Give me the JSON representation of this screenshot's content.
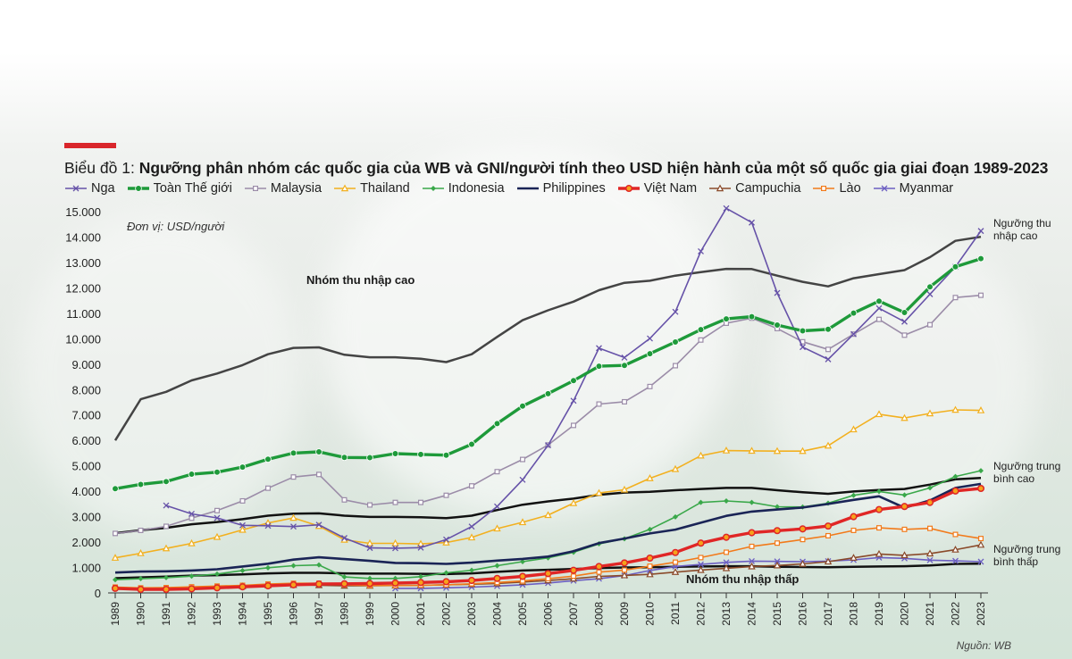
{
  "chart_data": {
    "type": "line",
    "title_prefix": "Biểu đồ 1:",
    "title": "Ngưỡng phân nhóm các quốc gia của WB và GNI/người tính theo USD hiện hành của một số quốc gia giai đoạn 1989-2023",
    "unit": "Đơn vị: USD/người",
    "source": "Nguồn: WB",
    "ylim": [
      0,
      15000
    ],
    "yticks": [
      "0",
      "1.000",
      "2.000",
      "3.000",
      "4.000",
      "5.000",
      "6.000",
      "7.000",
      "8.000",
      "9.000",
      "10.000",
      "11.000",
      "12.000",
      "13.000",
      "14.000",
      "15.000"
    ],
    "x": [
      "1989",
      "1990",
      "1991",
      "1992",
      "1993",
      "1994",
      "1995",
      "1996",
      "1997",
      "1998",
      "1999",
      "2000",
      "2001",
      "2002",
      "2003",
      "2004",
      "2005",
      "2006",
      "2007",
      "2008",
      "2009",
      "2010",
      "2011",
      "2012",
      "2013",
      "2014",
      "2015",
      "2016",
      "2017",
      "2018",
      "2019",
      "2020",
      "2021",
      "2022",
      "2023"
    ],
    "band_labels": {
      "high": "Nhóm thu nhập cao",
      "low": "Nhóm thu nhập thấp"
    },
    "threshold_labels": {
      "high": "Ngưỡng thu nhập cao",
      "upper_middle": "Ngưỡng trung bình cao",
      "lower_middle": "Ngưỡng trung bình thấp"
    },
    "thresholds": [
      {
        "name": "Ngưỡng thu nhập cao",
        "color": "#444444",
        "values": [
          6000,
          7620,
          7910,
          8360,
          8630,
          8960,
          9390,
          9640,
          9660,
          9370,
          9270,
          9270,
          9210,
          9080,
          9390,
          10070,
          10730,
          11120,
          11460,
          11910,
          12200,
          12280,
          12480,
          12620,
          12750,
          12740,
          12480,
          12240,
          12060,
          12380,
          12540,
          12700,
          13210,
          13850,
          14010
        ]
      },
      {
        "name": "Ngưỡng trung bình cao",
        "color": "#111111",
        "values": [
          2350,
          2470,
          2560,
          2700,
          2790,
          2900,
          3040,
          3120,
          3130,
          3040,
          2990,
          2990,
          2980,
          2940,
          3040,
          3260,
          3470,
          3600,
          3710,
          3860,
          3950,
          3980,
          4040,
          4090,
          4130,
          4130,
          4040,
          3960,
          3900,
          3990,
          4050,
          4090,
          4260,
          4470,
          4520
        ]
      },
      {
        "name": "Ngưỡng trung bình thấp",
        "color": "#111111",
        "values": [
          580,
          610,
          640,
          680,
          700,
          730,
          770,
          790,
          790,
          770,
          760,
          760,
          750,
          740,
          770,
          830,
          880,
          910,
          940,
          980,
          1000,
          1010,
          1030,
          1040,
          1050,
          1050,
          1030,
          1020,
          1010,
          1030,
          1040,
          1050,
          1080,
          1140,
          1150
        ]
      }
    ],
    "series": [
      {
        "name": "Nga",
        "color": "#6652a8",
        "marker": "x",
        "values": [
          null,
          null,
          3440,
          3110,
          2950,
          2660,
          2640,
          2610,
          2680,
          2160,
          1770,
          1760,
          1780,
          2100,
          2610,
          3400,
          4450,
          5810,
          7560,
          9630,
          9260,
          10010,
          11060,
          13440,
          15130,
          14570,
          11800,
          9670,
          9190,
          10180,
          11200,
          10670,
          11750,
          12830,
          14240
        ]
      },
      {
        "name": "Toàn Thế giới",
        "color": "#1e9a3a",
        "marker": "dot",
        "values": [
          4100,
          4270,
          4380,
          4670,
          4750,
          4950,
          5260,
          5500,
          5550,
          5330,
          5320,
          5480,
          5450,
          5420,
          5850,
          6660,
          7350,
          7840,
          8350,
          8920,
          8950,
          9410,
          9870,
          10360,
          10780,
          10870,
          10540,
          10310,
          10370,
          11010,
          11480,
          11030,
          12040,
          12830,
          13150
        ]
      },
      {
        "name": "Malaysia",
        "color": "#9b8ca8",
        "marker": "square",
        "values": [
          2340,
          2460,
          2620,
          2940,
          3240,
          3620,
          4120,
          4560,
          4660,
          3660,
          3460,
          3560,
          3560,
          3840,
          4210,
          4770,
          5250,
          5820,
          6590,
          7430,
          7520,
          8120,
          8940,
          9950,
          10610,
          10810,
          10400,
          9880,
          9580,
          10180,
          10760,
          10140,
          10550,
          11620,
          11710
        ]
      },
      {
        "name": "Thailand",
        "color": "#f2b01f",
        "marker": "triangle",
        "values": [
          1380,
          1560,
          1750,
          1950,
          2200,
          2480,
          2750,
          2950,
          2630,
          2090,
          1950,
          1950,
          1930,
          1980,
          2180,
          2530,
          2780,
          3060,
          3530,
          3930,
          4060,
          4510,
          4870,
          5400,
          5600,
          5590,
          5580,
          5580,
          5790,
          6430,
          7030,
          6880,
          7060,
          7200,
          7180
        ]
      },
      {
        "name": "Indonesia",
        "color": "#3aa84a",
        "marker": "diamond",
        "values": [
          520,
          560,
          600,
          660,
          740,
          880,
          990,
          1070,
          1100,
          630,
          570,
          570,
          640,
          790,
          890,
          1070,
          1230,
          1380,
          1600,
          1930,
          2130,
          2500,
          2990,
          3560,
          3620,
          3560,
          3390,
          3380,
          3530,
          3840,
          3990,
          3850,
          4130,
          4580,
          4810
        ]
      },
      {
        "name": "Philippines",
        "color": "#1a2456",
        "marker": "none",
        "values": [
          800,
          840,
          850,
          880,
          930,
          1040,
          1150,
          1310,
          1400,
          1330,
          1260,
          1180,
          1170,
          1140,
          1190,
          1270,
          1340,
          1430,
          1640,
          1960,
          2140,
          2340,
          2490,
          2760,
          3030,
          3200,
          3280,
          3360,
          3500,
          3660,
          3800,
          3350,
          3640,
          4130,
          4290
        ]
      },
      {
        "name": "Việt Nam",
        "color": "#e02626",
        "marker": "dot-orange",
        "values": [
          180,
          140,
          140,
          160,
          200,
          240,
          280,
          320,
          350,
          360,
          370,
          390,
          410,
          440,
          490,
          570,
          650,
          760,
          890,
          1040,
          1180,
          1370,
          1590,
          1960,
          2190,
          2370,
          2450,
          2520,
          2630,
          3000,
          3280,
          3400,
          3560,
          4010,
          4110
        ]
      },
      {
        "name": "Campuchia",
        "color": "#8a4a2a",
        "marker": "triangle",
        "values": [
          null,
          null,
          null,
          null,
          null,
          260,
          300,
          310,
          300,
          280,
          280,
          290,
          300,
          320,
          340,
          370,
          430,
          490,
          560,
          650,
          690,
          730,
          820,
          900,
          970,
          1040,
          1080,
          1140,
          1230,
          1380,
          1530,
          1480,
          1550,
          1700,
          1890
        ]
      },
      {
        "name": "Lào",
        "color": "#f27a1a",
        "marker": "square",
        "values": [
          230,
          200,
          210,
          240,
          270,
          300,
          350,
          380,
          380,
          320,
          290,
          290,
          300,
          320,
          360,
          410,
          470,
          560,
          660,
          820,
          900,
          1050,
          1210,
          1390,
          1600,
          1830,
          1960,
          2100,
          2250,
          2460,
          2560,
          2500,
          2540,
          2300,
          2140
        ]
      },
      {
        "name": "Myanmar",
        "color": "#6c5fc2",
        "marker": "x",
        "values": [
          null,
          null,
          null,
          null,
          null,
          null,
          null,
          null,
          null,
          null,
          null,
          180,
          180,
          200,
          230,
          270,
          320,
          390,
          480,
          560,
          680,
          880,
          1040,
          1120,
          1200,
          1250,
          1240,
          1230,
          1250,
          1300,
          1390,
          1360,
          1290,
          1260,
          1230
        ]
      }
    ]
  }
}
